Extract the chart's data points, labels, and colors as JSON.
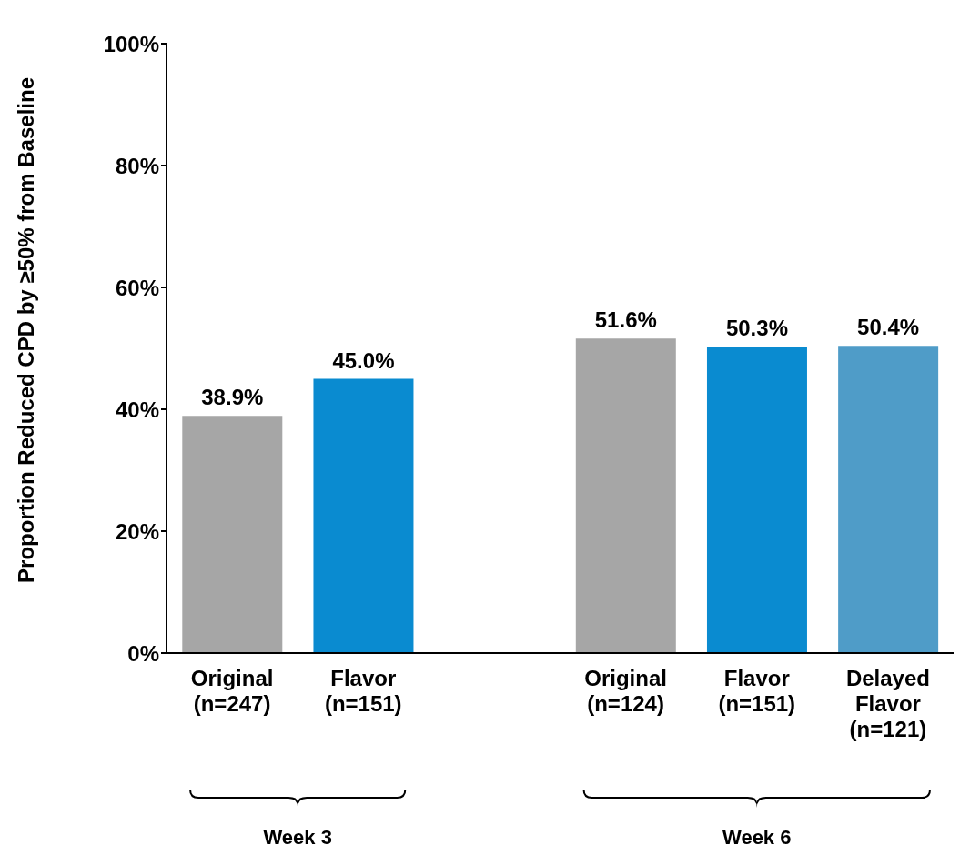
{
  "chart_data": {
    "type": "bar",
    "ylabel": "Proportion Reduced CPD by ≥50% from Baseline",
    "categories": [
      "Original\n(n=247)",
      "Flavor\n(n=151)",
      null,
      "Original\n(n=124)",
      "Flavor\n(n=151)",
      "Delayed\nFlavor\n(n=121)"
    ],
    "values": [
      38.9,
      45.0,
      null,
      51.6,
      50.3,
      50.4
    ],
    "colors": [
      "#a6a6a6",
      "#0a8bd0",
      null,
      "#a6a6a6",
      "#0a8bd0",
      "#4f9cc8"
    ],
    "value_labels": [
      "38.9%",
      "45.0%",
      null,
      "51.6%",
      "50.3%",
      "50.4%"
    ],
    "ylim": [
      0,
      100
    ],
    "yticks": [
      {
        "value": 0,
        "label": "0%"
      },
      {
        "value": 20,
        "label": "20%"
      },
      {
        "value": 40,
        "label": "40%"
      },
      {
        "value": 60,
        "label": "60%"
      },
      {
        "value": 80,
        "label": "80%"
      },
      {
        "value": 100,
        "label": "100%"
      }
    ],
    "annotations": [
      "Week 3",
      "Week 6"
    ],
    "grid": false
  }
}
